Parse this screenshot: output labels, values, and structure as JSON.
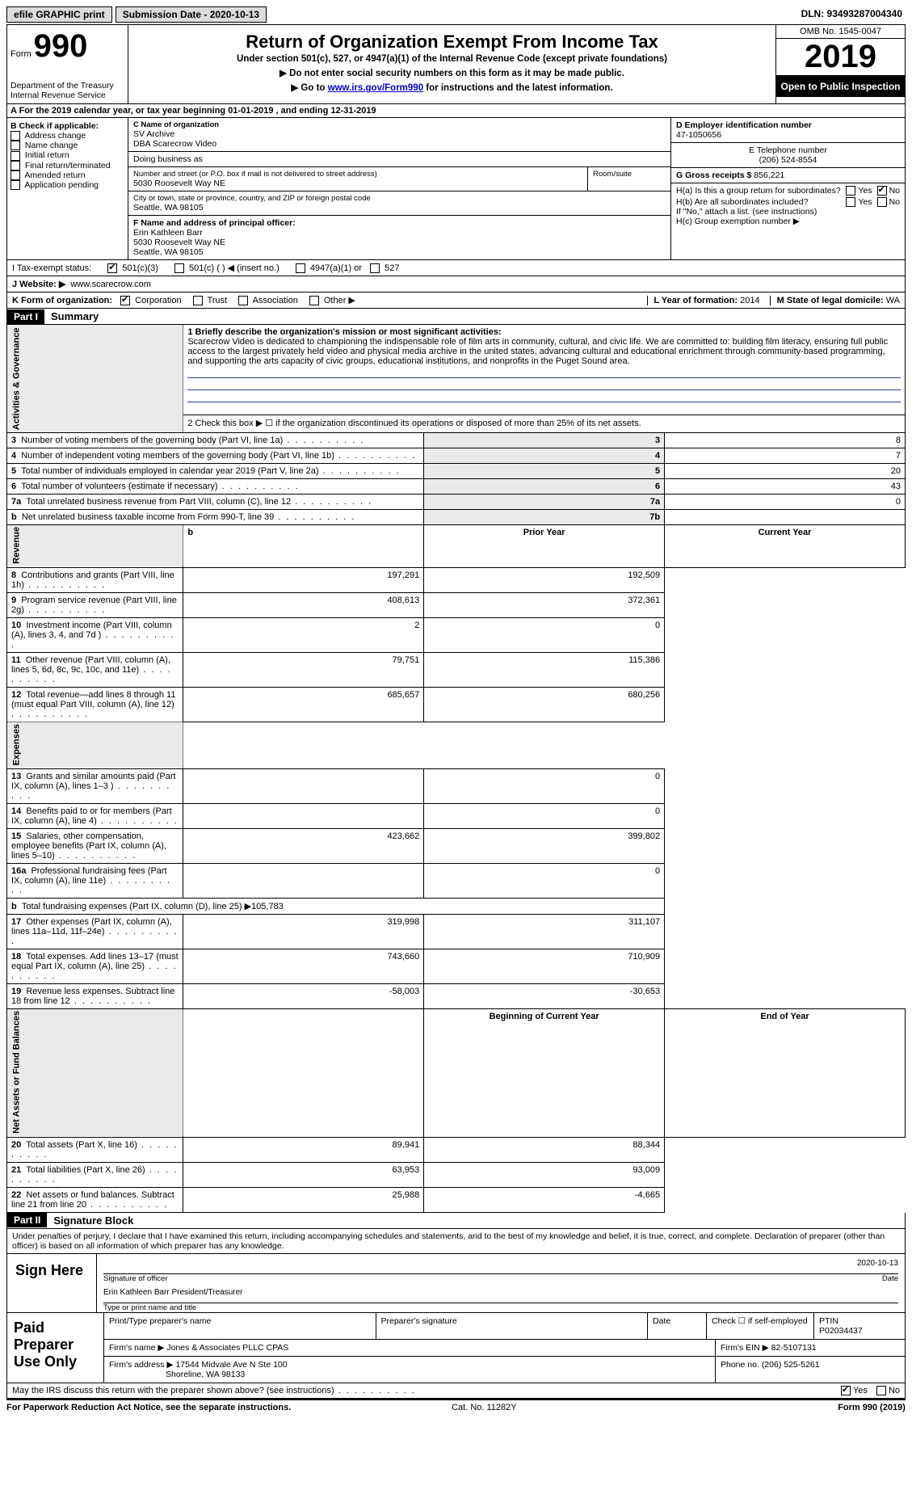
{
  "topbar": {
    "efile": "efile GRAPHIC print",
    "submission": "Submission Date - 2020-10-13",
    "dln": "DLN: 93493287004340"
  },
  "header": {
    "form_label": "Form",
    "form_number": "990",
    "dept": "Department of the Treasury Internal Revenue Service",
    "title": "Return of Organization Exempt From Income Tax",
    "subtitle": "Under section 501(c), 527, or 4947(a)(1) of the Internal Revenue Code (except private foundations)",
    "note1": "▶ Do not enter social security numbers on this form as it may be made public.",
    "note2_pre": "▶ Go to ",
    "note2_link": "www.irs.gov/Form990",
    "note2_post": " for instructions and the latest information.",
    "omb": "OMB No. 1545-0047",
    "year": "2019",
    "open_public": "Open to Public Inspection"
  },
  "row_a": "A For the 2019 calendar year, or tax year beginning 01-01-2019    , and ending 12-31-2019",
  "col_b": {
    "title": "B Check if applicable:",
    "items": [
      "Address change",
      "Name change",
      "Initial return",
      "Final return/terminated",
      "Amended return",
      "Application pending"
    ]
  },
  "col_c": {
    "name_label": "C Name of organization",
    "name": "SV Archive",
    "dba": "DBA Scarecrow Video",
    "doing_business": "Doing business as",
    "addr_label": "Number and street (or P.O. box if mail is not delivered to street address)",
    "room_label": "Room/suite",
    "addr": "5030 Roosevelt Way NE",
    "city_label": "City or town, state or province, country, and ZIP or foreign postal code",
    "city": "Seattle, WA  98105",
    "officer_label": "F Name and address of principal officer:",
    "officer_name": "Erin Kathleen Barr",
    "officer_addr1": "5030 Roosevelt Way NE",
    "officer_addr2": "Seattle, WA  98105"
  },
  "col_d": {
    "ein_label": "D Employer identification number",
    "ein": "47-1050656",
    "phone_label": "E Telephone number",
    "phone": "(206) 524-8554",
    "gross_label": "G Gross receipts $",
    "gross": "856,221"
  },
  "col_h": {
    "ha": "H(a)  Is this a group return for subordinates?",
    "hb": "H(b)  Are all subordinates included?",
    "hb_note": "If \"No,\" attach a list. (see instructions)",
    "hc": "H(c)  Group exemption number ▶",
    "yes": "Yes",
    "no": "No"
  },
  "row_i": {
    "label": "I   Tax-exempt status:",
    "opt1": "501(c)(3)",
    "opt2": "501(c) (   ) ◀ (insert no.)",
    "opt3": "4947(a)(1) or",
    "opt4": "527"
  },
  "row_j": {
    "label": "J   Website: ▶",
    "value": "www.scarecrow.com"
  },
  "row_k": {
    "label": "K Form of organization:",
    "opts": [
      "Corporation",
      "Trust",
      "Association",
      "Other ▶"
    ],
    "l_label": "L Year of formation:",
    "l_val": "2014",
    "m_label": "M State of legal domicile:",
    "m_val": "WA"
  },
  "part1": {
    "header": "Part I",
    "title": "Summary"
  },
  "summary": {
    "line1_label": "1  Briefly describe the organization's mission or most significant activities:",
    "mission": "Scarecrow Video is dedicated to championing the indispensable role of film arts in community, cultural, and civic life. We are committed to: building film literacy, ensuring full public access to the largest privately held video and physical media archive in the united states, advancing cultural and educational enrichment through community-based programming, and supporting the arts capacity of civic groups, educational institutions, and nonprofits in the Puget Sound area.",
    "line2": "2   Check this box ▶ ☐ if the organization discontinued its operations or disposed of more than 25% of its net assets.",
    "rows_gov": [
      {
        "n": "3",
        "label": "Number of voting members of the governing body (Part VI, line 1a)",
        "box": "3",
        "val": "8"
      },
      {
        "n": "4",
        "label": "Number of independent voting members of the governing body (Part VI, line 1b)",
        "box": "4",
        "val": "7"
      },
      {
        "n": "5",
        "label": "Total number of individuals employed in calendar year 2019 (Part V, line 2a)",
        "box": "5",
        "val": "20"
      },
      {
        "n": "6",
        "label": "Total number of volunteers (estimate if necessary)",
        "box": "6",
        "val": "43"
      },
      {
        "n": "7a",
        "label": "Total unrelated business revenue from Part VIII, column (C), line 12",
        "box": "7a",
        "val": "0"
      },
      {
        "n": "b",
        "label": "Net unrelated business taxable income from Form 990-T, line 39",
        "box": "7b",
        "val": ""
      }
    ],
    "col_headers": {
      "prior": "Prior Year",
      "current": "Current Year"
    },
    "rows_rev": [
      {
        "n": "8",
        "label": "Contributions and grants (Part VIII, line 1h)",
        "prior": "197,291",
        "cur": "192,509"
      },
      {
        "n": "9",
        "label": "Program service revenue (Part VIII, line 2g)",
        "prior": "408,613",
        "cur": "372,361"
      },
      {
        "n": "10",
        "label": "Investment income (Part VIII, column (A), lines 3, 4, and 7d )",
        "prior": "2",
        "cur": "0"
      },
      {
        "n": "11",
        "label": "Other revenue (Part VIII, column (A), lines 5, 6d, 8c, 9c, 10c, and 11e)",
        "prior": "79,751",
        "cur": "115,386"
      },
      {
        "n": "12",
        "label": "Total revenue—add lines 8 through 11 (must equal Part VIII, column (A), line 12)",
        "prior": "685,657",
        "cur": "680,256"
      }
    ],
    "rows_exp": [
      {
        "n": "13",
        "label": "Grants and similar amounts paid (Part IX, column (A), lines 1–3 )",
        "prior": "",
        "cur": "0"
      },
      {
        "n": "14",
        "label": "Benefits paid to or for members (Part IX, column (A), line 4)",
        "prior": "",
        "cur": "0"
      },
      {
        "n": "15",
        "label": "Salaries, other compensation, employee benefits (Part IX, column (A), lines 5–10)",
        "prior": "423,662",
        "cur": "399,802"
      },
      {
        "n": "16a",
        "label": "Professional fundraising fees (Part IX, column (A), line 11e)",
        "prior": "",
        "cur": "0"
      },
      {
        "n": "b",
        "label": "Total fundraising expenses (Part IX, column (D), line 25) ▶105,783",
        "prior": "—",
        "cur": "—"
      },
      {
        "n": "17",
        "label": "Other expenses (Part IX, column (A), lines 11a–11d, 11f–24e)",
        "prior": "319,998",
        "cur": "311,107"
      },
      {
        "n": "18",
        "label": "Total expenses. Add lines 13–17 (must equal Part IX, column (A), line 25)",
        "prior": "743,660",
        "cur": "710,909"
      },
      {
        "n": "19",
        "label": "Revenue less expenses. Subtract line 18 from line 12",
        "prior": "-58,003",
        "cur": "-30,653"
      }
    ],
    "net_headers": {
      "begin": "Beginning of Current Year",
      "end": "End of Year"
    },
    "rows_net": [
      {
        "n": "20",
        "label": "Total assets (Part X, line 16)",
        "prior": "89,941",
        "cur": "88,344"
      },
      {
        "n": "21",
        "label": "Total liabilities (Part X, line 26)",
        "prior": "63,953",
        "cur": "93,009"
      },
      {
        "n": "22",
        "label": "Net assets or fund balances. Subtract line 21 from line 20",
        "prior": "25,988",
        "cur": "-4,665"
      }
    ],
    "side_labels": {
      "gov": "Activities & Governance",
      "rev": "Revenue",
      "exp": "Expenses",
      "net": "Net Assets or Fund Balances"
    }
  },
  "part2": {
    "header": "Part II",
    "title": "Signature Block"
  },
  "sig": {
    "declaration": "Under penalties of perjury, I declare that I have examined this return, including accompanying schedules and statements, and to the best of my knowledge and belief, it is true, correct, and complete. Declaration of preparer (other than officer) is based on all information of which preparer has any knowledge.",
    "sign_here": "Sign Here",
    "sig_officer": "Signature of officer",
    "date_val": "2020-10-13",
    "date_label": "Date",
    "name_title": "Erin Kathleen Barr  President/Treasurer",
    "name_title_label": "Type or print name and title"
  },
  "preparer": {
    "left": "Paid Preparer Use Only",
    "print_name_label": "Print/Type preparer's name",
    "sig_label": "Preparer's signature",
    "date_label": "Date",
    "check_label": "Check ☐ if self-employed",
    "ptin_label": "PTIN",
    "ptin": "P02034437",
    "firm_name_label": "Firm's name    ▶",
    "firm_name": "Jones & Associates PLLC CPAS",
    "firm_ein_label": "Firm's EIN ▶",
    "firm_ein": "82-5107131",
    "firm_addr_label": "Firm's address ▶",
    "firm_addr1": "17544 Midvale Ave N Ste 100",
    "firm_addr2": "Shoreline, WA  98133",
    "phone_label": "Phone no.",
    "phone": "(206) 525-5261"
  },
  "bottom": {
    "discuss": "May the IRS discuss this return with the preparer shown above? (see instructions)",
    "yes": "Yes",
    "no": "No",
    "paperwork": "For Paperwork Reduction Act Notice, see the separate instructions.",
    "cat": "Cat. No. 11282Y",
    "form": "Form 990 (2019)"
  },
  "colors": {
    "header_bg": "#dcdcdc",
    "sidebar_bg": "#eaeaea",
    "link": "#0000cc",
    "line_blue": "#2040a0"
  }
}
